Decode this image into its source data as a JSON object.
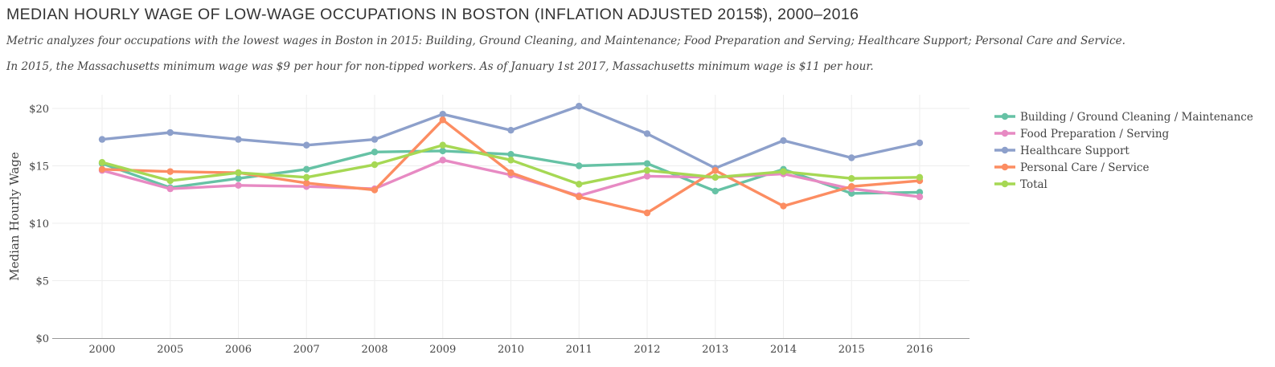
{
  "header": {
    "title": "MEDIAN HOURLY WAGE OF LOW-WAGE OCCUPATIONS IN BOSTON (INFLATION ADJUSTED 2015$), 2000–2016",
    "subtitle_1": "Metric analyzes four occupations with the lowest wages in Boston in 2015: Building, Ground Cleaning, and Maintenance; Food Preparation and Serving; Healthcare Support; Personal Care and Service.",
    "subtitle_2": "In 2015, the Massachusetts minimum wage was $9 per hour for non-tipped workers. As of January 1st 2017, Massachusetts minimum wage is $11 per hour."
  },
  "chart_data": {
    "type": "line",
    "title": "MEDIAN HOURLY WAGE OF LOW-WAGE OCCUPATIONS IN BOSTON (INFLATION ADJUSTED 2015$), 2000–2016",
    "xlabel": "",
    "ylabel": "Median Hourly Wage",
    "x": [
      "2000",
      "2005",
      "2006",
      "2007",
      "2008",
      "2009",
      "2010",
      "2011",
      "2012",
      "2013",
      "2014",
      "2015",
      "2016"
    ],
    "ylim": [
      0,
      20
    ],
    "yticks": [
      0,
      5,
      10,
      15,
      20
    ],
    "ytick_labels": [
      "$0",
      "$5",
      "$10",
      "$15",
      "$20"
    ],
    "grid": true,
    "legend_position": "top-right",
    "series": [
      {
        "name": "Building / Ground Cleaning / Maintenance",
        "color": "#66c2a5",
        "values": [
          15.2,
          13.1,
          13.9,
          14.7,
          16.2,
          16.3,
          16.0,
          15.0,
          15.2,
          12.8,
          14.7,
          12.6,
          12.7
        ]
      },
      {
        "name": "Food Preparation / Serving",
        "color": "#e78ac3",
        "values": [
          14.6,
          13.0,
          13.3,
          13.2,
          13.0,
          15.5,
          14.2,
          12.4,
          14.1,
          14.0,
          14.3,
          13.0,
          12.3
        ]
      },
      {
        "name": "Healthcare Support",
        "color": "#8da0cb",
        "values": [
          17.3,
          17.9,
          17.3,
          16.8,
          17.3,
          19.5,
          18.1,
          20.2,
          17.8,
          14.8,
          17.2,
          15.7,
          17.0
        ]
      },
      {
        "name": "Personal Care / Service",
        "color": "#fc8d62",
        "values": [
          14.7,
          14.5,
          14.4,
          13.5,
          12.9,
          19.0,
          14.4,
          12.3,
          10.9,
          14.6,
          11.5,
          13.2,
          13.7
        ]
      },
      {
        "name": "Total",
        "color": "#a6d854",
        "values": [
          15.3,
          13.7,
          14.4,
          14.0,
          15.1,
          16.8,
          15.5,
          13.4,
          14.6,
          14.0,
          14.5,
          13.9,
          14.0
        ]
      }
    ]
  }
}
